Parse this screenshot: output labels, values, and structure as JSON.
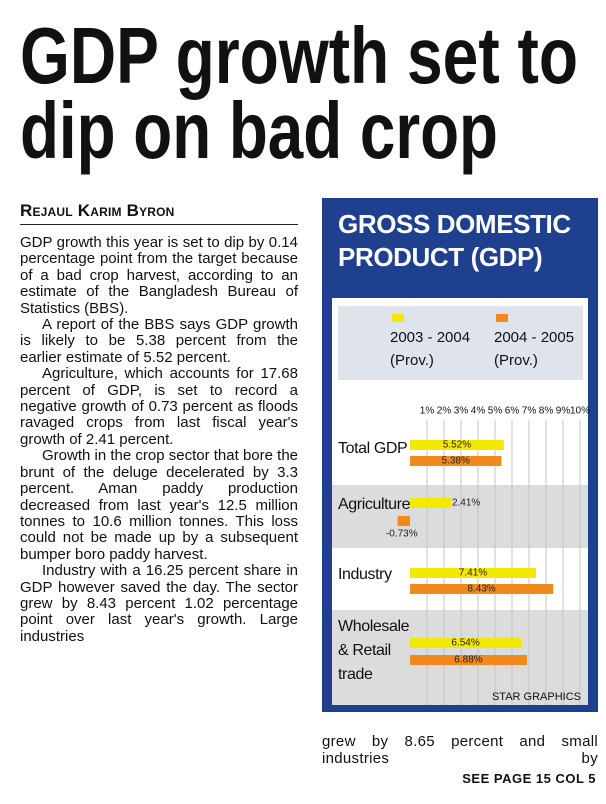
{
  "headline": [
    "GDP growth set to",
    "dip on bad crop"
  ],
  "byline": "Rejaul Karim Byron",
  "article": {
    "paragraphs": [
      "GDP growth this year is set to dip by 0.14 percentage point from the target because of a bad crop harvest, according to an estimate of the Bangladesh Bureau of Statistics (BBS).",
      "A report of the BBS says GDP growth is likely to be 5.38 percent from the earlier estimate of 5.52 percent.",
      "Agriculture, which accounts for 17.68 percent of GDP, is set to record a negative growth of 0.73 percent as floods ravaged crops from last fiscal year's growth of 2.41 percent.",
      "Growth in the crop sector that bore the brunt of the deluge decelerated by 3.3 percent. Aman paddy production decreased from last year's 12.5 million tonnes to 10.6 million tonnes. This loss could not be made up by a subsequent bumper boro paddy harvest.",
      "Industry with a 16.25 percent share in GDP however saved the day. The sector grew by 8.43 percent  1.02 percentage point over last year's growth. Large industries"
    ],
    "continued": "grew by 8.65 percent and small industries by",
    "jump": "SEE PAGE 15 COL 5"
  },
  "chart_data": {
    "type": "bar",
    "orientation": "horizontal",
    "title": "GROSS DOMESTIC PRODUCT (GDP)",
    "categories": [
      "Total GDP",
      "Agriculture",
      "Industry",
      "Wholesale & Retail trade"
    ],
    "series": [
      {
        "name": "2003 - 2004",
        "qualifier": "(Prov.)",
        "color": "#f5e800",
        "values": [
          5.52,
          2.41,
          7.41,
          6.54
        ],
        "value_labels": [
          "5.52%",
          "2.41%",
          "7.41%",
          "6.54%"
        ]
      },
      {
        "name": "2004 - 2005",
        "qualifier": "(Prov.)",
        "color": "#f08a1c",
        "values": [
          5.38,
          -0.73,
          8.43,
          6.88
        ],
        "value_labels": [
          "5.38%",
          "-0.73%",
          "8.43%",
          "6.88%"
        ]
      }
    ],
    "xlim": [
      -1,
      10
    ],
    "xticks": [
      {
        "value": 1,
        "label": "1%"
      },
      {
        "value": 2,
        "label": "2%"
      },
      {
        "value": 3,
        "label": "3%"
      },
      {
        "value": 4,
        "label": "4%"
      },
      {
        "value": 5,
        "label": "5%"
      },
      {
        "value": 6,
        "label": "6%"
      },
      {
        "value": 7,
        "label": "7%"
      },
      {
        "value": 8,
        "label": "8%"
      },
      {
        "value": 9,
        "label": "9%"
      },
      {
        "value": 10,
        "label": "10%"
      }
    ],
    "grid": true,
    "credit": "STAR GRAPHICS"
  }
}
